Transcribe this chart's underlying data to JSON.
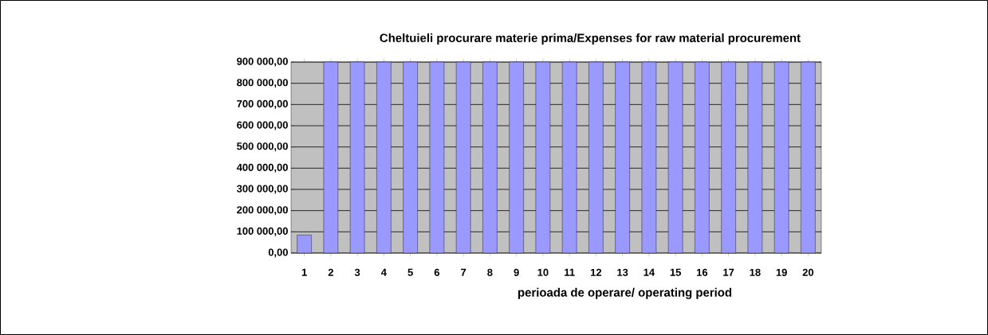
{
  "chart_data": {
    "type": "bar",
    "title": "Cheltuieli procurare materie prima/Expenses for raw material procurement",
    "xlabel": "perioada de operare/ operating period",
    "categories": [
      "1",
      "2",
      "3",
      "4",
      "5",
      "6",
      "7",
      "8",
      "9",
      "10",
      "11",
      "12",
      "13",
      "14",
      "15",
      "16",
      "17",
      "18",
      "19",
      "20"
    ],
    "values": [
      85000,
      900000,
      900000,
      900000,
      900000,
      900000,
      900000,
      900000,
      900000,
      900000,
      900000,
      900000,
      900000,
      900000,
      900000,
      900000,
      900000,
      900000,
      900000,
      900000
    ],
    "color": "#9999ff",
    "ylim": [
      0,
      900000
    ],
    "yticks": [
      {
        "value": 0,
        "label": "0,00"
      },
      {
        "value": 100000,
        "label": "100 000,00"
      },
      {
        "value": 200000,
        "label": "200 000,00"
      },
      {
        "value": 300000,
        "label": "300 000,00"
      },
      {
        "value": 400000,
        "label": "400 000,00"
      },
      {
        "value": 500000,
        "label": "500 000,00"
      },
      {
        "value": 600000,
        "label": "600 000,00"
      },
      {
        "value": 700000,
        "label": "700 000,00"
      },
      {
        "value": 800000,
        "label": "800 000,00"
      },
      {
        "value": 900000,
        "label": "900 000,00"
      }
    ],
    "grid": "y"
  }
}
